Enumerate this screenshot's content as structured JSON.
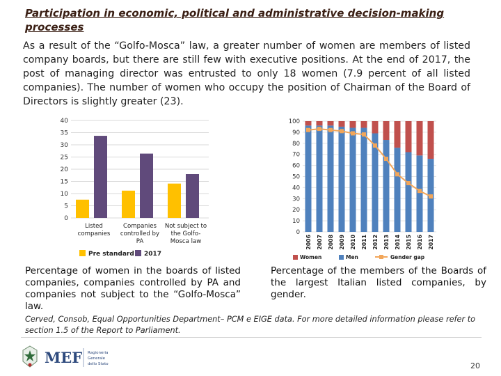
{
  "header": {
    "title": "Participation in economic, political and administrative  decision-making processes"
  },
  "body": {
    "intro": "As a result of the “Golfo-Mosca” law, a greater number of women are members of listed company boards, but there are still few with executive positions. At the end of 2017, the post of managing director was entrusted to only 18 women (7.9 percent of all listed companies). The number of women who occupy the position of Chairman of the Board of Directors is slightly greater (23)."
  },
  "chart_data": [
    {
      "type": "bar",
      "categories": [
        "Listed companies",
        "Companies controlled by PA",
        "Not subject to the Golfo-Mosca law"
      ],
      "category_lines": [
        [
          "Listed",
          "companies"
        ],
        [
          "Companies",
          "controlled by",
          "PA"
        ],
        [
          "Not subject to",
          "the Golfo-",
          "Mosca law"
        ]
      ],
      "series": [
        {
          "name": "Pre standard",
          "values": [
            7.5,
            11.2,
            14.1
          ],
          "color": "#ffc000"
        },
        {
          "name": "2017",
          "values": [
            33.7,
            26.4,
            18
          ],
          "color": "#604a7b"
        }
      ],
      "yticks": [
        "0",
        "5",
        "10",
        "15",
        "20",
        "25",
        "30",
        "35",
        "40"
      ],
      "ylim": [
        0,
        40
      ],
      "grid": true,
      "legend": "bottom"
    },
    {
      "type": "bar",
      "stacked": true,
      "categories": [
        "2006",
        "2007",
        "2008",
        "2009",
        "2010",
        "2011",
        "2012",
        "2013",
        "2014",
        "2015",
        "2016",
        "2017"
      ],
      "series": [
        {
          "name": "Women",
          "values": [
            4,
            4,
            4,
            5,
            6,
            6,
            11,
            17,
            24,
            28,
            31,
            34
          ],
          "color": "#c0504d",
          "kind": "bar"
        },
        {
          "name": "Men",
          "values": [
            96,
            96,
            96,
            95,
            94,
            94,
            89,
            83,
            76,
            72,
            69,
            66
          ],
          "color": "#4f81bd",
          "kind": "bar"
        },
        {
          "name": "Gender gap",
          "values": [
            92,
            93,
            92,
            91,
            89,
            88,
            78,
            66,
            52,
            44,
            37,
            32
          ],
          "color": "#f2a65a",
          "kind": "line"
        }
      ],
      "yticks": [
        "0",
        "10",
        "20",
        "30",
        "40",
        "50",
        "60",
        "70",
        "80",
        "90",
        "100"
      ],
      "ylim": [
        0,
        100
      ],
      "grid": true,
      "legend": "bottom"
    }
  ],
  "captions": {
    "left": "Percentage of women in the boards of listed companies, companies controlled by PA and companies not subject to the “Golfo-Mosca” law.",
    "right": "Percentage of the members of the Boards of the largest Italian listed companies, by gender."
  },
  "source": "Cerved, Consob, Equal Opportunities Department– PCM e EIGE data. For more detailed information please refer to section 1.5 of the Report to Parliament.",
  "footer": {
    "logo_text": "MEF",
    "logo_sub": [
      "Ragioneria",
      "Generale",
      "dello Stato"
    ],
    "page_number": "20"
  }
}
